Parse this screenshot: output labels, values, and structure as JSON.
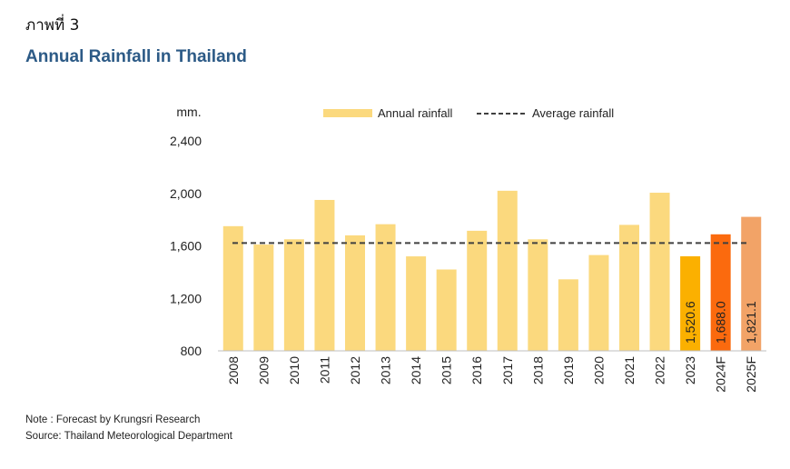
{
  "figure_label": "ภาพที่ 3",
  "title": "Annual Rainfall in Thailand",
  "notes": {
    "note": "Note : Forecast by Krungsri Research",
    "source": "Source: Thailand Meteorological Department"
  },
  "colors": {
    "actual": "#fbd97e",
    "y2023": "#fbb000",
    "y2024F": "#fb6a0e",
    "y2025F": "#f2a367",
    "average_line": "#404040",
    "title": "#2c5a86"
  },
  "chart_data": {
    "type": "bar",
    "title": "Annual Rainfall in Thailand",
    "ylabel": "mm.",
    "xlabel": "",
    "ylim": [
      800,
      2400
    ],
    "yticks": [
      800,
      1200,
      1600,
      2000,
      2400
    ],
    "ytick_labels": [
      "800",
      "1,200",
      "1,600",
      "2,000",
      "2,400"
    ],
    "grid": false,
    "legend_position": "top",
    "categories": [
      "2008",
      "2009",
      "2010",
      "2011",
      "2012",
      "2013",
      "2014",
      "2015",
      "2016",
      "2017",
      "2018",
      "2019",
      "2020",
      "2021",
      "2022",
      "2023",
      "2024F",
      "2025F"
    ],
    "series": [
      {
        "name": "Annual rainfall",
        "type": "bar",
        "values": [
          1750,
          1610,
          1650,
          1950,
          1680,
          1765,
          1520,
          1420,
          1715,
          2020,
          1650,
          1345,
          1530,
          1760,
          2005,
          1520.6,
          1688.0,
          1821.1
        ]
      },
      {
        "name": "Average rainfall",
        "type": "dashed-line",
        "value": 1622
      }
    ],
    "data_labels": [
      {
        "category": "2023",
        "text": "1,520.6"
      },
      {
        "category": "2024F",
        "text": "1,688.0"
      },
      {
        "category": "2025F",
        "text": "1,821.1"
      }
    ]
  }
}
